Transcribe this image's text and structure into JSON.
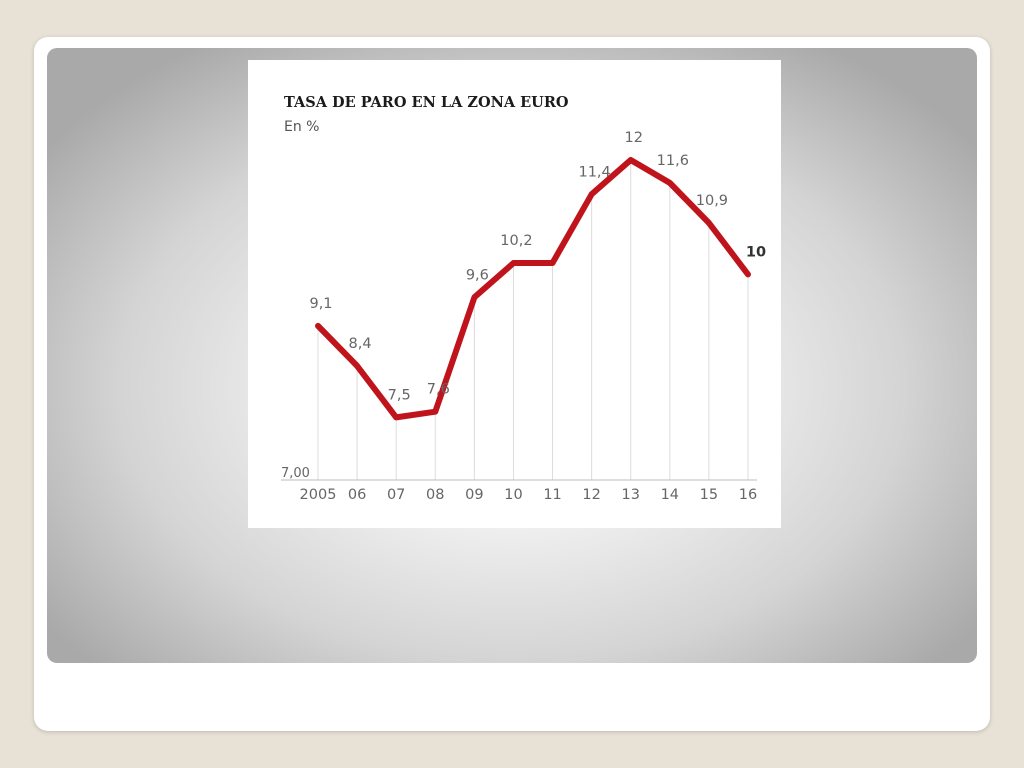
{
  "chart_data": {
    "type": "line",
    "title": "TASA DE PARO EN LA ZONA EURO",
    "subtitle": "En %",
    "categories": [
      "2005",
      "06",
      "07",
      "08",
      "09",
      "10",
      "11",
      "12",
      "13",
      "14",
      "15",
      "16"
    ],
    "series": [
      {
        "values": [
          9.1,
          8.4,
          7.5,
          7.6,
          9.6,
          10.2,
          10.2,
          11.4,
          12,
          11.6,
          10.9,
          10
        ]
      }
    ],
    "value_labels": [
      "9,1",
      "8,4",
      "7,5",
      "7,6",
      "9,6",
      "10,2",
      "",
      "11,4",
      "12",
      "11,6",
      "10,9",
      "10"
    ],
    "y_min_label": "7,00",
    "ylim": [
      7,
      12
    ],
    "grid": "vertical",
    "line_color": "#c0141c"
  }
}
